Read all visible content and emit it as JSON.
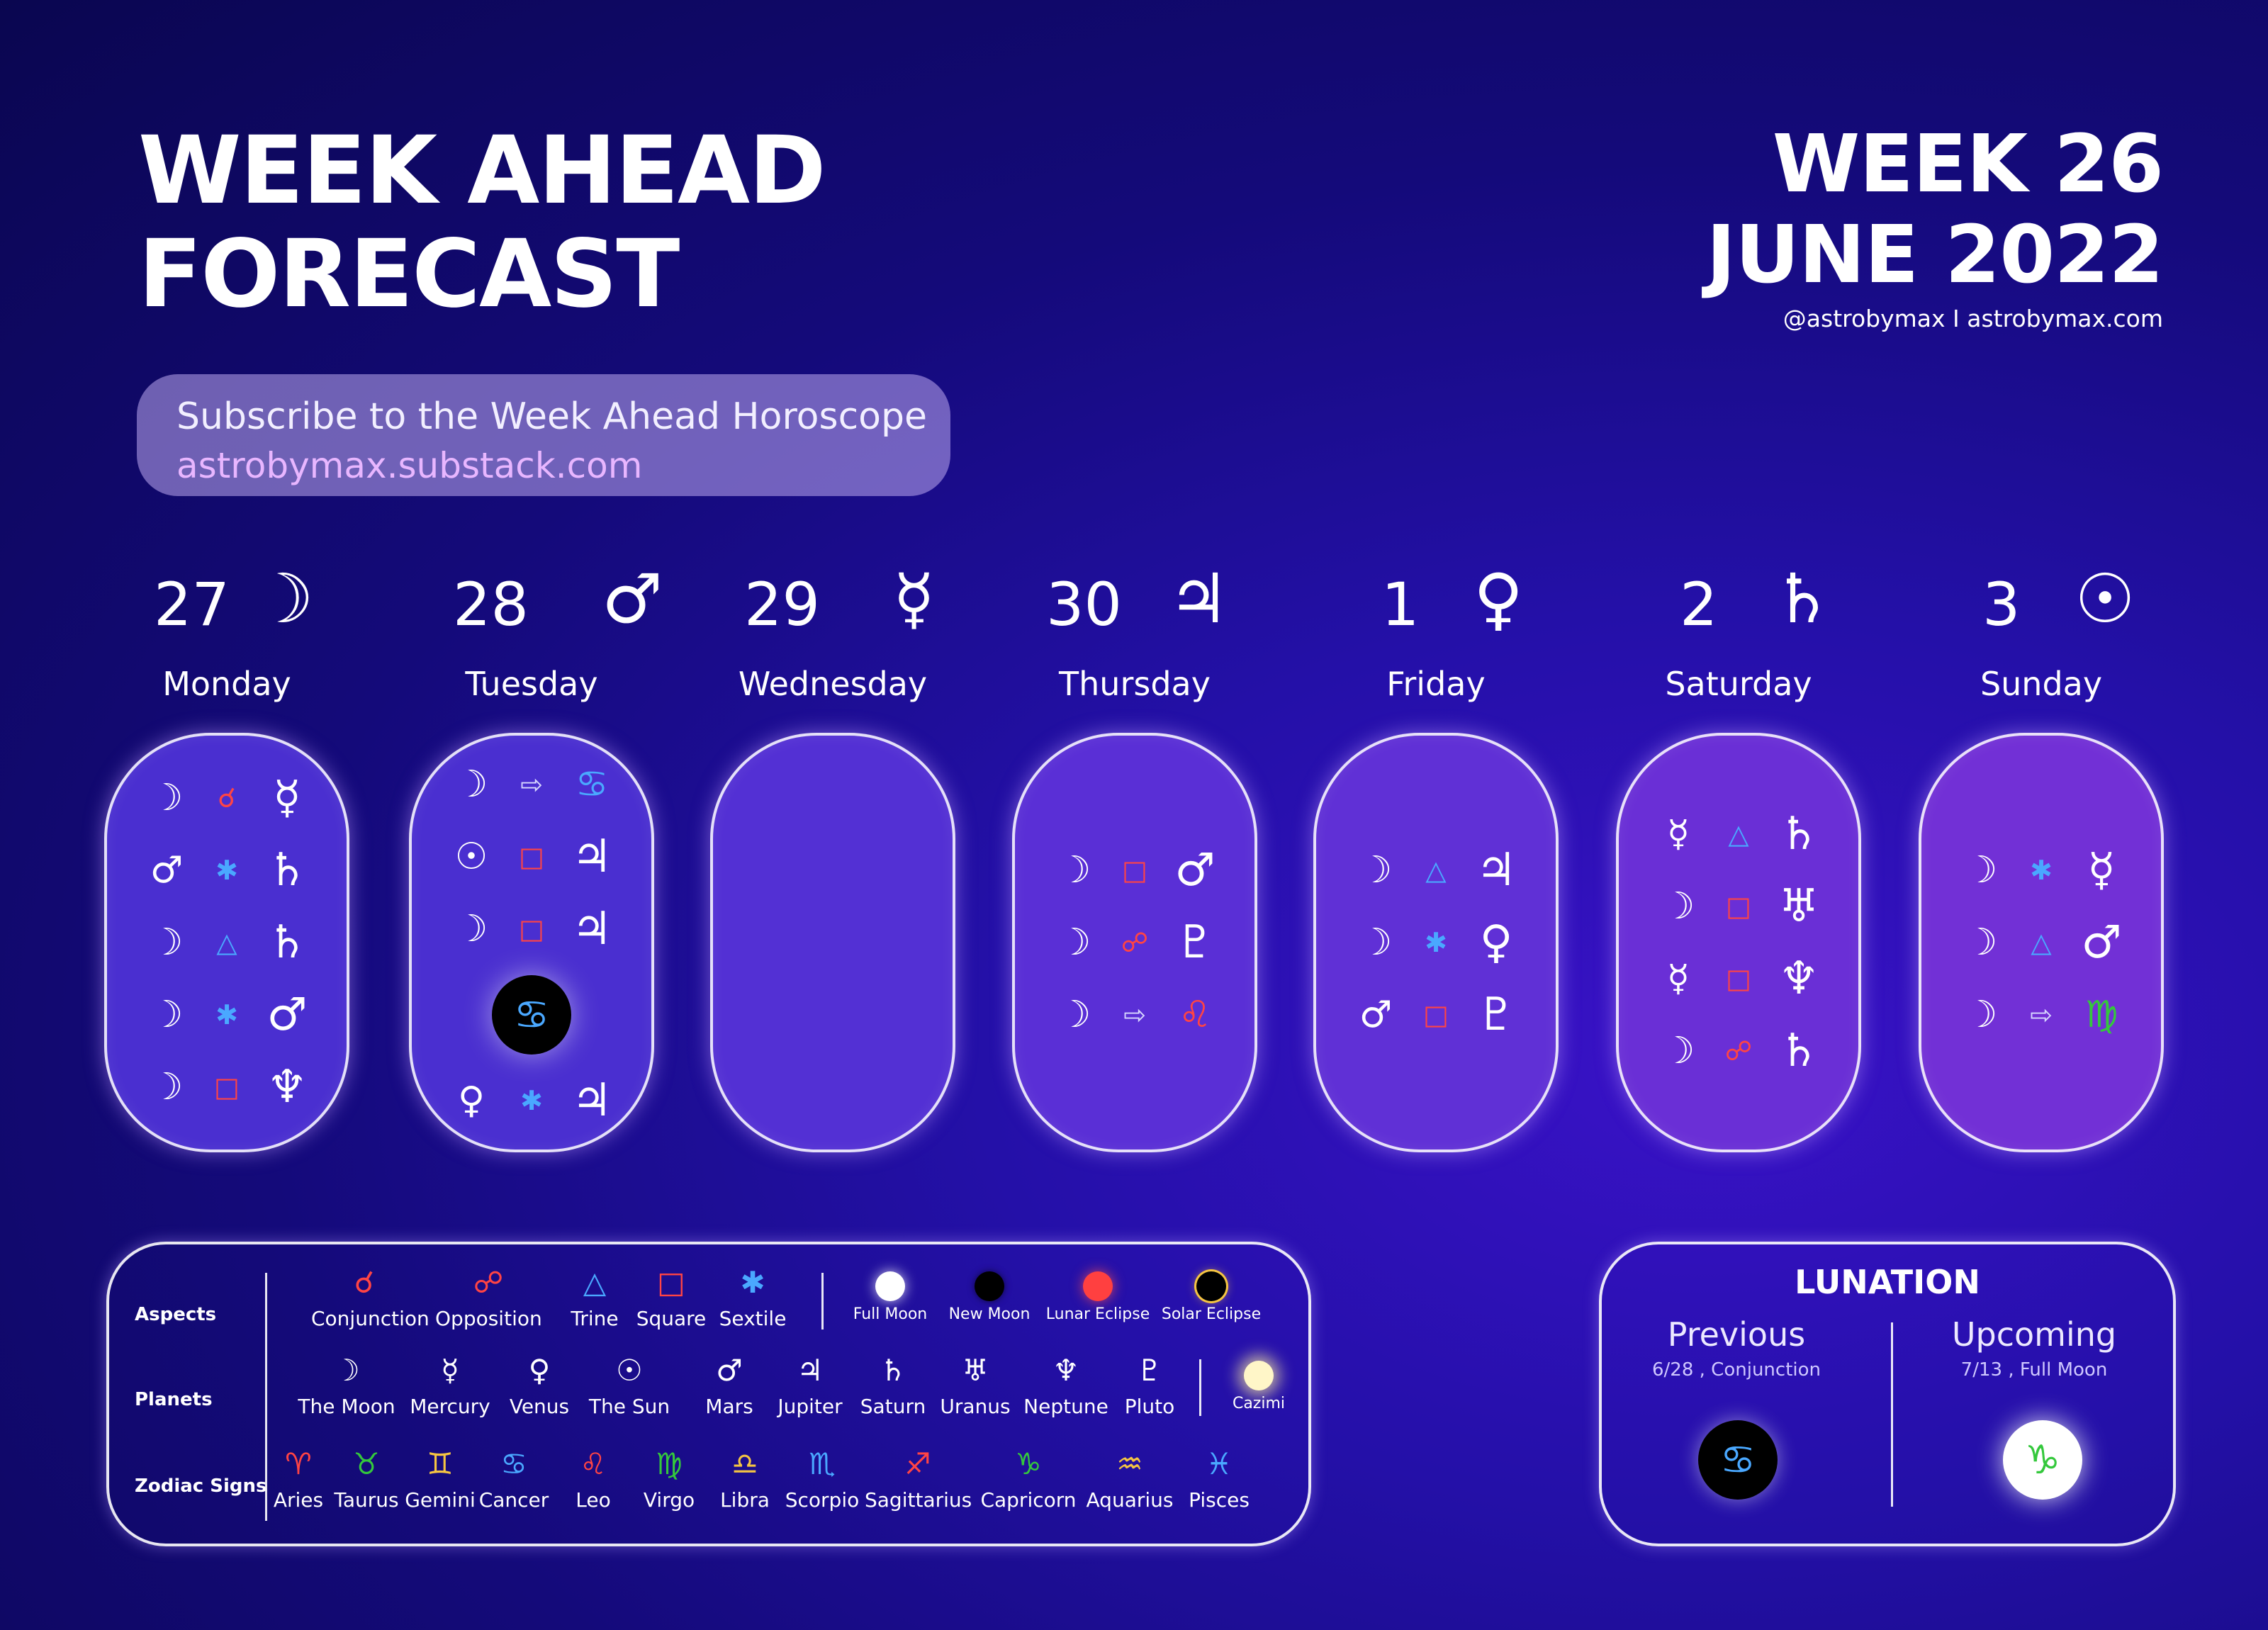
{
  "header": {
    "title_line1": "WEEK AHEAD",
    "title_line2": "FORECAST",
    "week_label": "WEEK 26",
    "month_label": "JUNE 2022",
    "handle": "@astrobymax  I astrobymax.com"
  },
  "subscribe": {
    "line1": "Subscribe to the Week Ahead Horoscope",
    "line2": "astrobymax.substack.com"
  },
  "colors": {
    "conjunction": "#ff4444",
    "opposition": "#ff4444",
    "trine": "#4aa8ff",
    "square": "#ff4444",
    "sextile": "#4aa8ff",
    "ingress": "#d8d8ff",
    "cancer": "#4aa8ff",
    "leo": "#ff4444",
    "virgo": "#34c83c",
    "capricorn": "#34c83c"
  },
  "days": [
    {
      "num": "27",
      "ruler": "☽",
      "ruler_icon": "moon-icon",
      "name": "Monday",
      "bg": "#4a2fd0",
      "aspects": [
        [
          "☽",
          "☌",
          "conjunction",
          "☿"
        ],
        [
          "♂",
          "✱",
          "sextile",
          "♄"
        ],
        [
          "☽",
          "△",
          "trine",
          "♄"
        ],
        [
          "☽",
          "✱",
          "sextile",
          "♂"
        ],
        [
          "☽",
          "□",
          "square",
          "♆"
        ]
      ]
    },
    {
      "num": "28",
      "ruler": "♂",
      "ruler_icon": "mars-icon",
      "name": "Tuesday",
      "bg": "#4a2fd0",
      "aspects": [
        [
          "☽",
          "⇨",
          "ingress",
          "♋"
        ],
        [
          "☉",
          "□",
          "square",
          "♃"
        ],
        [
          "☽",
          "□",
          "square",
          "♃"
        ],
        [
          "NEWMOON"
        ],
        [
          "♀",
          "✱",
          "sextile",
          "♃"
        ]
      ],
      "new_moon_glyph": "♋"
    },
    {
      "num": "29",
      "ruler": "☿",
      "ruler_icon": "mercury-icon",
      "name": "Wednesday",
      "bg": "#5330d4",
      "aspects": []
    },
    {
      "num": "30",
      "ruler": "♃",
      "ruler_icon": "jupiter-icon",
      "name": "Thursday",
      "bg": "#5a2fd6",
      "aspects": [
        [
          "☽",
          "□",
          "square",
          "♂"
        ],
        [
          "☽",
          "☍",
          "opposition",
          "♇"
        ],
        [
          "☽",
          "⇨",
          "ingress",
          "♌"
        ]
      ]
    },
    {
      "num": "1",
      "ruler": "♀",
      "ruler_icon": "venus-icon",
      "name": "Friday",
      "bg": "#6030d6",
      "aspects": [
        [
          "☽",
          "△",
          "trine",
          "♃"
        ],
        [
          "☽",
          "✱",
          "sextile",
          "♀"
        ],
        [
          "♂",
          "□",
          "square",
          "♇"
        ]
      ]
    },
    {
      "num": "2",
      "ruler": "♄",
      "ruler_icon": "saturn-icon",
      "name": "Saturday",
      "bg": "#6a2fd6",
      "aspects": [
        [
          "☿",
          "△",
          "trine",
          "♄"
        ],
        [
          "☽",
          "□",
          "square",
          "♅"
        ],
        [
          "☿",
          "□",
          "square",
          "♆"
        ],
        [
          "☽",
          "☍",
          "opposition",
          "♄"
        ]
      ]
    },
    {
      "num": "3",
      "ruler": "☉",
      "ruler_icon": "sun-icon",
      "name": "Sunday",
      "bg": "#7230d6",
      "aspects": [
        [
          "☽",
          "✱",
          "sextile",
          "☿"
        ],
        [
          "☽",
          "△",
          "trine",
          "♂"
        ],
        [
          "☽",
          "⇨",
          "ingress",
          "♍"
        ]
      ]
    }
  ],
  "legend": {
    "cat_aspects": "Aspects",
    "cat_planets": "Planets",
    "cat_signs": "Zodiac Signs",
    "aspects": [
      {
        "g": "☌",
        "t": "Conjunction",
        "c": "#ff4444"
      },
      {
        "g": "☍",
        "t": "Opposition",
        "c": "#ff4444"
      },
      {
        "g": "△",
        "t": "Trine",
        "c": "#4aa8ff"
      },
      {
        "g": "□",
        "t": "Square",
        "c": "#ff4444"
      },
      {
        "g": "✱",
        "t": "Sextile",
        "c": "#4aa8ff"
      }
    ],
    "moons": [
      {
        "t": "Full Moon",
        "c": "#ffffff"
      },
      {
        "t": "New Moon",
        "c": "#000000"
      },
      {
        "t": "Lunar Eclipse",
        "c": "#ff4040"
      },
      {
        "t": "Solar Eclipse",
        "c": "#000000"
      }
    ],
    "planets": [
      {
        "g": "☽",
        "t": "The Moon"
      },
      {
        "g": "☿",
        "t": "Mercury"
      },
      {
        "g": "♀",
        "t": "Venus"
      },
      {
        "g": "☉",
        "t": "The Sun"
      },
      {
        "g": "♂",
        "t": "Mars"
      },
      {
        "g": "♃",
        "t": "Jupiter"
      },
      {
        "g": "♄",
        "t": "Saturn"
      },
      {
        "g": "♅",
        "t": "Uranus"
      },
      {
        "g": "♆",
        "t": "Neptune"
      },
      {
        "g": "♇",
        "t": "Pluto"
      }
    ],
    "cazimi": "Cazimi",
    "signs": [
      {
        "g": "♈",
        "t": "Aries",
        "c": "#ff4444"
      },
      {
        "g": "♉",
        "t": "Taurus",
        "c": "#34c83c"
      },
      {
        "g": "♊",
        "t": "Gemini",
        "c": "#f5c542"
      },
      {
        "g": "♋",
        "t": "Cancer",
        "c": "#4aa8ff"
      },
      {
        "g": "♌",
        "t": "Leo",
        "c": "#ff4444"
      },
      {
        "g": "♍",
        "t": "Virgo",
        "c": "#34c83c"
      },
      {
        "g": "♎",
        "t": "Libra",
        "c": "#f5c542"
      },
      {
        "g": "♏",
        "t": "Scorpio",
        "c": "#4aa8ff"
      },
      {
        "g": "♐",
        "t": "Sagittarius",
        "c": "#ff4444"
      },
      {
        "g": "♑",
        "t": "Capricorn",
        "c": "#34c83c"
      },
      {
        "g": "♒",
        "t": "Aquarius",
        "c": "#f5c542"
      },
      {
        "g": "♓",
        "t": "Pisces",
        "c": "#4aa8ff"
      }
    ]
  },
  "lunation": {
    "title": "LUNATION",
    "previous_label": "Previous",
    "previous_detail": "6/28 , Conjunction",
    "previous_glyph": "♋",
    "upcoming_label": "Upcoming",
    "upcoming_detail": "7/13 , Full Moon",
    "upcoming_glyph": "♑"
  }
}
